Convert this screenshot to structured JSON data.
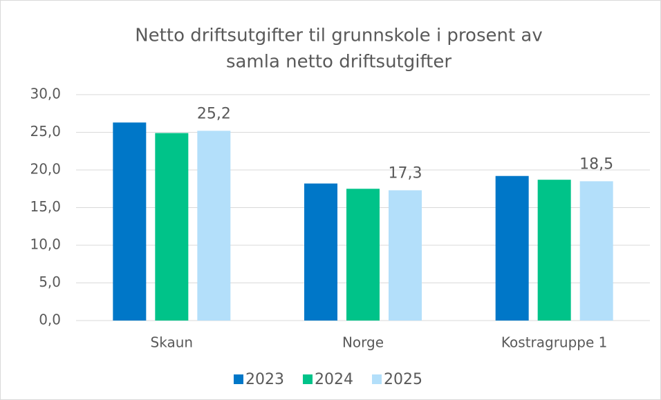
{
  "chart_data": {
    "type": "bar",
    "title": [
      "Netto driftsutgifter til grunnskole i prosent av",
      "samla netto driftsutgifter"
    ],
    "categories": [
      "Skaun",
      "Norge",
      "Kostragruppe 1"
    ],
    "series": [
      {
        "name": "2023",
        "color": "#0077c8",
        "values": [
          26.3,
          18.2,
          19.2
        ]
      },
      {
        "name": "2024",
        "color": "#00c389",
        "values": [
          24.9,
          17.5,
          18.7
        ]
      },
      {
        "name": "2025",
        "color": "#b3dffa",
        "values": [
          25.2,
          17.3,
          18.5
        ],
        "value_labels": [
          "25,2",
          "17,3",
          "18,5"
        ]
      }
    ],
    "ylim": [
      0,
      30
    ],
    "yticks": [
      {
        "value": 0,
        "label": "0,0"
      },
      {
        "value": 5,
        "label": "5,0"
      },
      {
        "value": 10,
        "label": "10,0"
      },
      {
        "value": 15,
        "label": "15,0"
      },
      {
        "value": 20,
        "label": "20,0"
      },
      {
        "value": 25,
        "label": "25,0"
      },
      {
        "value": 30,
        "label": "30,0"
      }
    ],
    "grid": true,
    "legend": "bottom"
  }
}
